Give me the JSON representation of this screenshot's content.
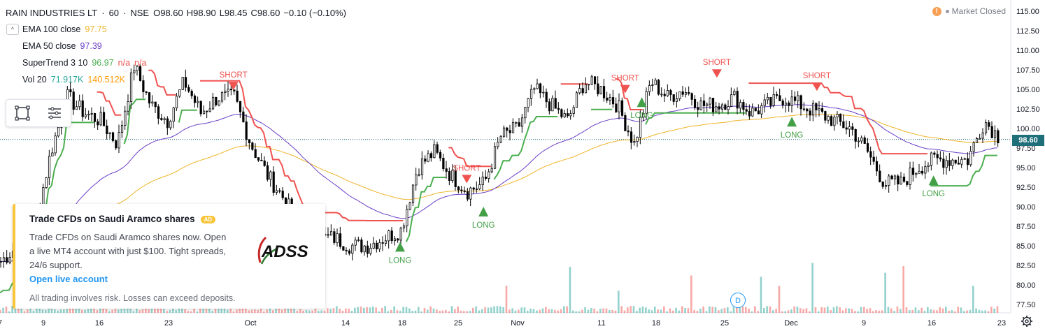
{
  "legend": {
    "symbol": "RAIN INDUSTRIES LT",
    "sep1": "·",
    "interval": "60",
    "sep2": "·",
    "exchange": "NSE",
    "ohlc": [
      "O98.60",
      "H98.90",
      "L98.45",
      "C98.60",
      "−0.10 (−0.10%)"
    ],
    "indicators": [
      {
        "name": "EMA 100 close",
        "values": [
          "97.75"
        ],
        "colors": [
          "#f0b429"
        ]
      },
      {
        "name": "EMA 50 close",
        "values": [
          "97.39"
        ],
        "colors": [
          "#6a3ec7"
        ]
      },
      {
        "name": "SuperTrend 3 10",
        "values": [
          "96.97",
          "n/a",
          "n/a"
        ],
        "colors": [
          "#4caf50",
          "#ef5350",
          "#ef5350"
        ]
      },
      {
        "name": "Vol 20",
        "values": [
          "71.917K",
          "140.512K"
        ],
        "colors": [
          "#26a69a",
          "#ff9800"
        ]
      }
    ]
  },
  "collapse_glyph": "^",
  "market_status": {
    "warn": "!",
    "label": "Market Closed"
  },
  "last_price": "98.60",
  "price_axis": [
    "115.00",
    "112.50",
    "110.00",
    "107.50",
    "105.00",
    "102.50",
    "100.00",
    "97.50",
    "95.00",
    "92.50",
    "90.00",
    "87.50",
    "85.00",
    "82.50",
    "80.00",
    "77.50"
  ],
  "time_axis": [
    "9",
    "16",
    "23",
    "Oct",
    "7",
    "14",
    "18",
    "25",
    "Nov",
    "11",
    "18",
    "25",
    "Dec",
    "9",
    "16",
    "23"
  ],
  "signals": [
    {
      "type": "SHORT",
      "price": 104.9,
      "day": 28
    },
    {
      "type": "LONG",
      "price": 85.5,
      "day": 48
    },
    {
      "type": "SHORT",
      "price": 93.0,
      "day": 56
    },
    {
      "type": "LONG",
      "price": 90.0,
      "day": 58
    },
    {
      "type": "SHORT",
      "price": 104.5,
      "day": 75
    },
    {
      "type": "LONG",
      "price": 104.0,
      "day": 77
    },
    {
      "type": "SHORT",
      "price": 106.5,
      "day": 86
    },
    {
      "type": "LONG",
      "price": 101.5,
      "day": 95
    },
    {
      "type": "SHORT",
      "price": 104.8,
      "day": 98
    },
    {
      "type": "LONG",
      "price": 94.0,
      "day": 112
    }
  ],
  "ad": {
    "title": "Trade CFDs on Saudi Aramco shares",
    "badge": "AD",
    "body": "Trade CFDs on Saudi Aramco shares now. Open a live MT4 account with just $100. Tight spreads, 24/6 support.",
    "link": "Open live account",
    "disclaimer": "All trading involves risk. Losses can exceed deposits.",
    "logo_text": "ADSS"
  },
  "dividend_marker": "D",
  "colors": {
    "up": "#26a69a",
    "down": "#ef5350",
    "candle": "#000000",
    "st_up": "#4caf50",
    "st_down": "#ef5350",
    "ema100": "#f0b429",
    "ema50": "#6a3ec7"
  }
}
